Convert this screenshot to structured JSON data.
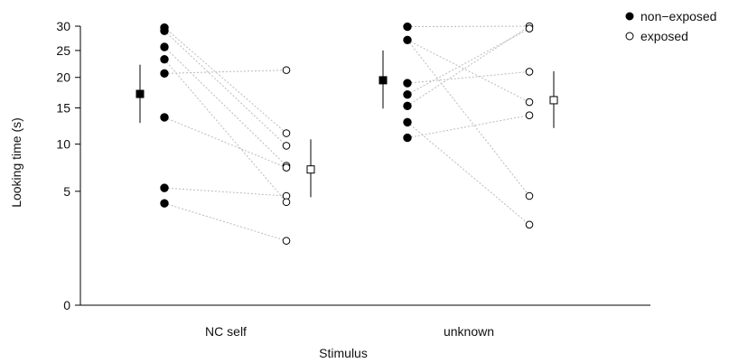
{
  "chart_data": {
    "type": "scatter",
    "title": "",
    "xlabel": "Stimulus",
    "ylabel": "Looking time (s)",
    "y_scale": "sqrt",
    "ylim": [
      0,
      30
    ],
    "yticks": [
      0,
      5,
      10,
      15,
      20,
      25,
      30
    ],
    "categories": [
      "NC self",
      "unknown"
    ],
    "legend": {
      "position": "top-right",
      "entries": [
        {
          "label": "non−exposed",
          "marker": "filled-circle"
        },
        {
          "label": "exposed",
          "marker": "open-circle"
        }
      ]
    },
    "colors": {
      "ink": "#000000",
      "connector": "#bbbbbb"
    },
    "series": [
      {
        "name": "non−exposed",
        "marker": "filled-circle",
        "groups": [
          {
            "category": "NC self",
            "values": [
              29.7,
              29.0,
              25.7,
              23.3,
              20.7,
              13.6,
              5.3,
              4.0
            ],
            "mean": 17.2,
            "err_low": 12.8,
            "err_high": 22.3
          },
          {
            "category": "unknown",
            "values": [
              29.9,
              27.1,
              19.0,
              17.1,
              15.3,
              12.9,
              10.8
            ],
            "mean": 19.5,
            "err_low": 14.9,
            "err_high": 25.0
          }
        ]
      },
      {
        "name": "exposed",
        "marker": "open-circle",
        "groups": [
          {
            "category": "NC self",
            "values": [
              21.3,
              11.4,
              9.8,
              7.5,
              7.3,
              4.6,
              4.1,
              1.6
            ],
            "mean": 7.1,
            "err_low": 4.5,
            "err_high": 10.6
          },
          {
            "category": "unknown",
            "values": [
              30.0,
              29.5,
              21.0,
              15.9,
              13.9,
              4.6,
              2.5
            ],
            "mean": 16.2,
            "err_low": 12.1,
            "err_high": 21.1
          }
        ]
      }
    ],
    "pairs": [
      {
        "category": "NC self",
        "links": [
          [
            29.7,
            11.4
          ],
          [
            29.0,
            9.8
          ],
          [
            25.7,
            7.5
          ],
          [
            23.3,
            4.1
          ],
          [
            20.7,
            21.3
          ],
          [
            13.6,
            7.3
          ],
          [
            5.3,
            4.6
          ],
          [
            4.0,
            1.6
          ]
        ]
      },
      {
        "category": "unknown",
        "links": [
          [
            29.9,
            30.0
          ],
          [
            27.1,
            15.9
          ],
          [
            27.1,
            4.6
          ],
          [
            19.0,
            21.0
          ],
          [
            17.1,
            29.5
          ],
          [
            15.3,
            30.0
          ],
          [
            12.9,
            2.5
          ],
          [
            10.8,
            13.9
          ]
        ]
      }
    ]
  }
}
